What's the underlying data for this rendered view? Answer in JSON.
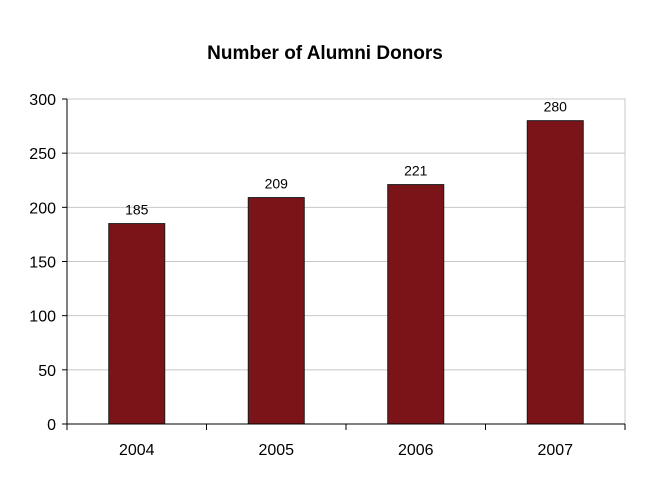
{
  "chart_data": {
    "type": "bar",
    "title": "Number of Alumni Donors",
    "xlabel": "",
    "ylabel": "",
    "categories": [
      "2004",
      "2005",
      "2006",
      "2007"
    ],
    "values": [
      185,
      209,
      221,
      280
    ],
    "data_labels": [
      "185",
      "209",
      "221",
      "280"
    ],
    "y_ticks": [
      0,
      50,
      100,
      150,
      200,
      250,
      300
    ],
    "ylim": [
      0,
      300
    ],
    "grid": true,
    "legend": "none",
    "bar_color": "#7b1419",
    "bar_edge_color": "#1a1a1a",
    "gridline_color": "#c8c8c8"
  }
}
